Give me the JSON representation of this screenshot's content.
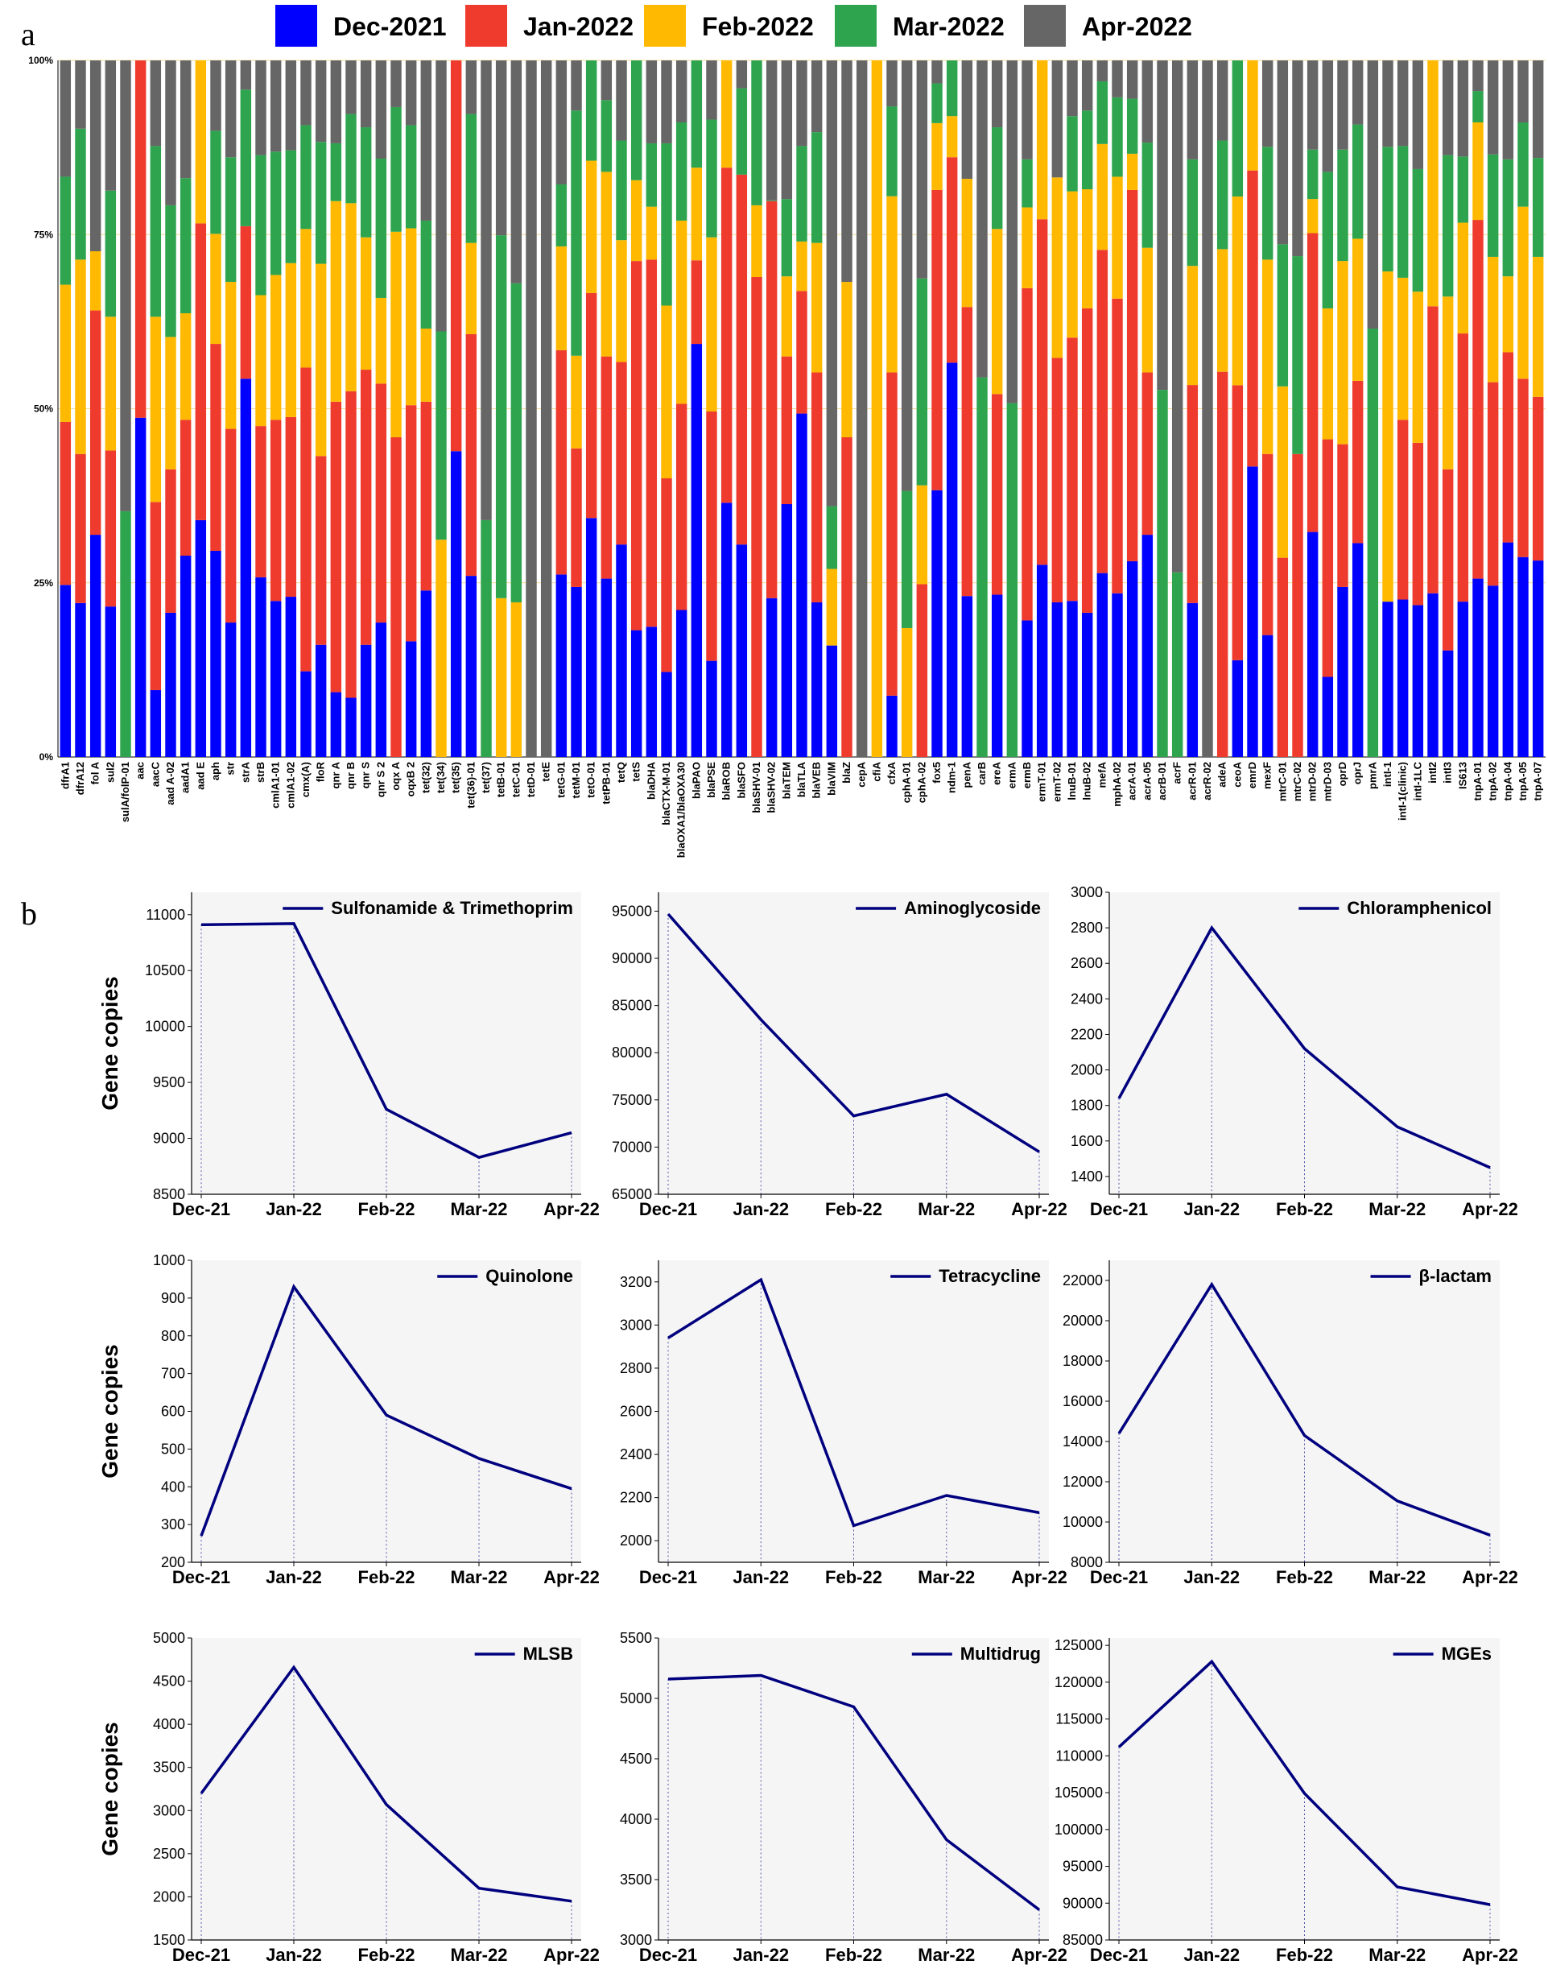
{
  "panel_labels": {
    "a": "a",
    "b": "b"
  },
  "colors": {
    "Dec-2021": "#0000ff",
    "Jan-2022": "#ee3b2e",
    "Feb-2022": "#ffb900",
    "Mar-2022": "#2ea44f",
    "Apr-2022": "#666666",
    "line": "#00007f",
    "plot_bg": "#f5f5f5"
  },
  "chart_data": [
    {
      "id": "panel-a",
      "type": "bar",
      "stacked": "percent",
      "title": "",
      "xlabel": "",
      "ylabel": "",
      "yticks": [
        "0%",
        "25%",
        "50%",
        "75%",
        "100%"
      ],
      "ylim": [
        0,
        100
      ],
      "series_names": [
        "Dec-2021",
        "Jan-2022",
        "Feb-2022",
        "Mar-2022",
        "Apr-2022"
      ],
      "categories": [
        "dfrA1",
        "dfrA12",
        "fol A",
        "sul2",
        "sulA/folP-01",
        "aac",
        "aacC",
        "aad A-02",
        "aadA1",
        "aad E",
        "aph",
        "str",
        "strA",
        "strB",
        "cmlA1-01",
        "cmlA1-02",
        "cmx(A)",
        "floR",
        "qnr A",
        "qnr B",
        "qnr S",
        "qnr S 2",
        "oqx A",
        "oqxB 2",
        "tet(32)",
        "tet(34)",
        "tet(35)",
        "tet(36)-01",
        "tet(37)",
        "tetB-01",
        "tetC-01",
        "tetD-01",
        "tetE",
        "tetG-01",
        "tetM-01",
        "tetO-01",
        "tetPB-01",
        "tetQ",
        "tetS",
        "blaDHA",
        "blaCTX-M-01",
        "blaOXA1/blaOXA30",
        "blaPAO",
        "blaPSE",
        "blaROB",
        "blaSFO",
        "blaSHV-01",
        "blaSHV-02",
        "blaTEM",
        "blaTLA",
        "blaVEB",
        "blaVIM",
        "blaZ",
        "cepA",
        "cfiA",
        "cfxA",
        "cphA-01",
        "cphA-02",
        "fox5",
        "ndm-1",
        "penA",
        "carB",
        "ereA",
        "ermA",
        "ermB",
        "ermT-01",
        "ermT-02",
        "lnuB-01",
        "lnuB-02",
        "mefA",
        "mphA-02",
        "acrA-01",
        "acrA-05",
        "acrB-01",
        "acrF",
        "acrR-01",
        "acrR-02",
        "adeA",
        "ceoA",
        "emrD",
        "mexF",
        "mtrC-01",
        "mtrC-02",
        "mtrD-02",
        "mtrD-03",
        "oprD",
        "oprJ",
        "pmrA",
        "intI-1",
        "intI-1(clinic)",
        "intI-1LC",
        "intI2",
        "intI3",
        "IS613",
        "tnpA-01",
        "tnpA-02",
        "tnpA-04",
        "tnpA-05",
        "tnpA-07"
      ],
      "values": [
        [
          24.7,
          23.4,
          19.7,
          15.5,
          16.7
        ],
        [
          22.1,
          21.4,
          27.9,
          18.8,
          9.8
        ],
        [
          31.9,
          32.2,
          8.5,
          0,
          27.4
        ],
        [
          21.6,
          22.4,
          19.2,
          18.1,
          18.7
        ],
        [
          0,
          0,
          0,
          35.3,
          64.7
        ],
        [
          48.7,
          51.3,
          0,
          0,
          0
        ],
        [
          9.6,
          27,
          26.6,
          24.5,
          12.3
        ],
        [
          20.7,
          20.6,
          19,
          18.9,
          20.8
        ],
        [
          28.9,
          19.5,
          15.3,
          19.4,
          16.9
        ],
        [
          34,
          42.6,
          23.4,
          0,
          0
        ],
        [
          29.6,
          29.7,
          15.8,
          14.8,
          10.1
        ],
        [
          19.3,
          27.8,
          21.1,
          17.9,
          13.9
        ],
        [
          54.3,
          21.9,
          0,
          19.6,
          4.2
        ],
        [
          25.8,
          21.7,
          18.8,
          20.1,
          13.6
        ],
        [
          22.4,
          26,
          20.8,
          17.7,
          13.1
        ],
        [
          23,
          25.8,
          22.1,
          16.2,
          12.9
        ],
        [
          12.3,
          43.6,
          19.9,
          14.9,
          9.3
        ],
        [
          16.1,
          27.1,
          27.6,
          17.5,
          11.7
        ],
        [
          9.3,
          41.7,
          28.8,
          8.3,
          11.9
        ],
        [
          8.5,
          44,
          27,
          12.8,
          7.7
        ],
        [
          16.1,
          39.5,
          19,
          15.8,
          9.6
        ],
        [
          19.3,
          34.3,
          12.3,
          20,
          14.1
        ],
        [
          0,
          45.9,
          29.5,
          17.9,
          6.7
        ],
        [
          16.6,
          33.9,
          25.4,
          14.8,
          9.3
        ],
        [
          23.9,
          27.1,
          10.5,
          15.5,
          23
        ],
        [
          0,
          0,
          31.2,
          29.9,
          38.9
        ],
        [
          43.9,
          56.1,
          0,
          0,
          0
        ],
        [
          26,
          34.7,
          13.1,
          18.5,
          7.7
        ],
        [
          0,
          0,
          0,
          34,
          66
        ],
        [
          0,
          0,
          22.8,
          52.1,
          25.1
        ],
        [
          0,
          0,
          22.2,
          45.8,
          32
        ],
        [
          0,
          0,
          0,
          0,
          100
        ],
        [
          0,
          0,
          0,
          0,
          100
        ],
        [
          26.2,
          32.2,
          14.9,
          8.9,
          17.8
        ],
        [
          24.4,
          19.9,
          13.3,
          35.2,
          7.2
        ],
        [
          34.3,
          32.3,
          19,
          14.4,
          0
        ],
        [
          25.6,
          31.9,
          26.5,
          10.3,
          5.7
        ],
        [
          30.5,
          26.2,
          17.5,
          14.3,
          11.5
        ],
        [
          18.2,
          53,
          11.6,
          17.2,
          0
        ],
        [
          18.7,
          52.7,
          7.6,
          9.1,
          11.9
        ],
        [
          12.2,
          27.8,
          24.8,
          23.3,
          11.9
        ],
        [
          21.1,
          29.6,
          26.3,
          14.1,
          8.9
        ],
        [
          59.3,
          12,
          13.3,
          15.4,
          0
        ],
        [
          13.8,
          35.8,
          25,
          16.9,
          8.5
        ],
        [
          36.5,
          48.1,
          15.4,
          0,
          0
        ],
        [
          30.5,
          53.1,
          0,
          12.4,
          4
        ],
        [
          0,
          68.9,
          10.3,
          20.8,
          0
        ],
        [
          22.8,
          57,
          0,
          0.1,
          20.1
        ],
        [
          36.3,
          21.2,
          11.5,
          11.1,
          19.9
        ],
        [
          49.3,
          17.6,
          7.1,
          13.7,
          12.3
        ],
        [
          22.2,
          33,
          18.6,
          15.9,
          10.3
        ],
        [
          16,
          0,
          11,
          9,
          64
        ],
        [
          0,
          45.9,
          22.3,
          0,
          31.8
        ],
        [
          0,
          0,
          0,
          0,
          100
        ],
        [
          0,
          0,
          100,
          0,
          0
        ],
        [
          8.8,
          46.4,
          25.3,
          12.9,
          6.6
        ],
        [
          0,
          0,
          18.5,
          19.7,
          61.8
        ],
        [
          0,
          24.8,
          14.2,
          29.7,
          31.3
        ],
        [
          38.3,
          43.1,
          9.6,
          5.7,
          3.3
        ],
        [
          56.6,
          29.5,
          5.9,
          8,
          0
        ],
        [
          23.1,
          41.5,
          18.4,
          0,
          17
        ],
        [
          0,
          0,
          0,
          54.5,
          45.5
        ],
        [
          23.3,
          28.8,
          23.7,
          14.6,
          9.6
        ],
        [
          0,
          0,
          0,
          50.8,
          49.2
        ],
        [
          19.6,
          47.7,
          11.6,
          6.9,
          14.2
        ],
        [
          27.6,
          49.6,
          22.8,
          0,
          0
        ],
        [
          22.2,
          35.1,
          25.9,
          0,
          16.8
        ],
        [
          22.4,
          37.8,
          21,
          10.8,
          8
        ],
        [
          20.7,
          43.7,
          17.1,
          11.3,
          7.2
        ],
        [
          26.4,
          46.4,
          15.2,
          9,
          3
        ],
        [
          23.5,
          42.3,
          17.5,
          11.4,
          5.3
        ],
        [
          28.1,
          53.3,
          5.2,
          7.9,
          5.5
        ],
        [
          31.9,
          23.3,
          17.9,
          15.1,
          11.8
        ],
        [
          0,
          0,
          0,
          52.7,
          47.3
        ],
        [
          0,
          0,
          0,
          26.5,
          73.5
        ],
        [
          22.1,
          31.3,
          17.1,
          15.3,
          14.2
        ],
        [
          0,
          0,
          0,
          0,
          100
        ],
        [
          0,
          55.3,
          17.6,
          15.6,
          11.5
        ],
        [
          14,
          39.8,
          27.3,
          19.7,
          -0.8
        ],
        [
          41.7,
          42.5,
          15.8,
          0,
          0
        ],
        [
          17.5,
          26,
          27.9,
          16.2,
          12.4
        ],
        [
          0,
          28.6,
          24.6,
          20.4,
          26.4
        ],
        [
          0,
          43.5,
          0,
          28.4,
          28.1
        ],
        [
          32.3,
          42.9,
          4.9,
          7.1,
          12.8
        ],
        [
          11.5,
          34.1,
          18.8,
          19.6,
          16
        ],
        [
          24.4,
          20.5,
          26.3,
          16,
          12.8
        ],
        [
          30.7,
          23.3,
          20.4,
          16.4,
          9.2
        ],
        [
          0,
          0,
          0,
          61.5,
          38.5
        ],
        [
          22.3,
          0,
          47.4,
          17.9,
          12.4
        ],
        [
          22.6,
          25.8,
          20.4,
          18.9,
          12.3
        ],
        [
          21.8,
          23.3,
          21.7,
          17.6,
          15.6
        ],
        [
          23.5,
          41.2,
          35.3,
          0,
          0
        ],
        [
          15.3,
          26,
          24.8,
          20.3,
          13.6
        ],
        [
          22.3,
          38.5,
          15.9,
          9.5,
          13.8
        ],
        [
          25.6,
          51.5,
          14,
          4.5,
          4.4
        ],
        [
          24.6,
          29.2,
          18,
          14.7,
          13.5
        ],
        [
          30.8,
          27.3,
          10.9,
          16.8,
          14.2
        ],
        [
          28.7,
          25.6,
          24.7,
          12.1,
          8.9
        ],
        [
          28.2,
          23.5,
          20.1,
          14.2,
          14
        ]
      ],
      "legend": [
        "Dec-2021",
        "Jan-2022",
        "Feb-2022",
        "Mar-2022",
        "Apr-2022"
      ],
      "legend_position": "top"
    },
    {
      "id": "sulf",
      "type": "line",
      "title": "Sulfonamide & Trimethoprim",
      "ylabel": "Gene copies",
      "xlabel": "",
      "categories": [
        "Dec-21",
        "Jan-22",
        "Feb-22",
        "Mar-22",
        "Apr-22"
      ],
      "values": [
        10910,
        10920,
        9260,
        8830,
        9050
      ],
      "ylim": [
        8500,
        11200
      ],
      "yticks": [
        8500,
        9000,
        9500,
        10000,
        10500,
        11000
      ],
      "legend": [
        "Sulfonamide & Trimethoprim"
      ]
    },
    {
      "id": "amino",
      "type": "line",
      "title": "Aminoglycoside",
      "ylabel": "",
      "xlabel": "",
      "categories": [
        "Dec-21",
        "Jan-22",
        "Feb-22",
        "Mar-22",
        "Apr-22"
      ],
      "values": [
        94700,
        83500,
        73300,
        75600,
        69500
      ],
      "ylim": [
        65000,
        97000
      ],
      "yticks": [
        65000,
        70000,
        75000,
        80000,
        85000,
        90000,
        95000
      ],
      "legend": [
        "Aminoglycoside"
      ]
    },
    {
      "id": "chlor",
      "type": "line",
      "title": "Chloramphenicol",
      "ylabel": "",
      "xlabel": "",
      "categories": [
        "Dec-21",
        "Jan-22",
        "Feb-22",
        "Mar-22",
        "Apr-22"
      ],
      "values": [
        1840,
        2800,
        2120,
        1680,
        1450
      ],
      "ylim": [
        1300,
        3000
      ],
      "yticks": [
        1400,
        1600,
        1800,
        2000,
        2200,
        2400,
        2600,
        2800,
        3000
      ],
      "legend": [
        "Chloramphenicol"
      ]
    },
    {
      "id": "quin",
      "type": "line",
      "title": "Quinolone",
      "ylabel": "Gene copies",
      "xlabel": "",
      "categories": [
        "Dec-21",
        "Jan-22",
        "Feb-22",
        "Mar-22",
        "Apr-22"
      ],
      "values": [
        270,
        930,
        590,
        475,
        395
      ],
      "ylim": [
        200,
        1000
      ],
      "yticks": [
        200,
        300,
        400,
        500,
        600,
        700,
        800,
        900,
        1000
      ],
      "legend": [
        "Quinolone"
      ]
    },
    {
      "id": "tetra",
      "type": "line",
      "title": "Tetracycline",
      "ylabel": "",
      "xlabel": "",
      "categories": [
        "Dec-21",
        "Jan-22",
        "Feb-22",
        "Mar-22",
        "Apr-22"
      ],
      "values": [
        2940,
        3210,
        2070,
        2210,
        2130
      ],
      "ylim": [
        1900,
        3300
      ],
      "yticks": [
        2000,
        2200,
        2400,
        2600,
        2800,
        3000,
        3200
      ],
      "legend": [
        "Tetracycline"
      ]
    },
    {
      "id": "beta",
      "type": "line",
      "title": "β-lactam",
      "ylabel": "",
      "xlabel": "",
      "categories": [
        "Dec-21",
        "Jan-22",
        "Feb-22",
        "Mar-22",
        "Apr-22"
      ],
      "values": [
        14400,
        21800,
        14300,
        11050,
        9350
      ],
      "ylim": [
        8000,
        23000
      ],
      "yticks": [
        8000,
        10000,
        12000,
        14000,
        16000,
        18000,
        20000,
        22000
      ],
      "legend": [
        "β-lactam"
      ]
    },
    {
      "id": "mlsb",
      "type": "line",
      "title": "MLSB",
      "ylabel": "Gene copies",
      "xlabel": "",
      "categories": [
        "Dec-21",
        "Jan-22",
        "Feb-22",
        "Mar-22",
        "Apr-22"
      ],
      "values": [
        3200,
        4660,
        3070,
        2100,
        1950
      ],
      "ylim": [
        1500,
        5000
      ],
      "yticks": [
        1500,
        2000,
        2500,
        3000,
        3500,
        4000,
        4500,
        5000
      ],
      "legend": [
        "MLSB"
      ]
    },
    {
      "id": "multi",
      "type": "line",
      "title": "Multidrug",
      "ylabel": "",
      "xlabel": "",
      "categories": [
        "Dec-21",
        "Jan-22",
        "Feb-22",
        "Mar-22",
        "Apr-22"
      ],
      "values": [
        5160,
        5190,
        4930,
        3830,
        3250
      ],
      "ylim": [
        3000,
        5500
      ],
      "yticks": [
        3000,
        3500,
        4000,
        4500,
        5000,
        5500
      ],
      "legend": [
        "Multidrug"
      ]
    },
    {
      "id": "mges",
      "type": "line",
      "title": "MGEs",
      "ylabel": "",
      "xlabel": "",
      "categories": [
        "Dec-21",
        "Jan-22",
        "Feb-22",
        "Mar-22",
        "Apr-22"
      ],
      "values": [
        111200,
        122800,
        104900,
        92200,
        89800
      ],
      "ylim": [
        85000,
        126000
      ],
      "yticks": [
        85000,
        90000,
        95000,
        100000,
        105000,
        110000,
        115000,
        120000,
        125000
      ],
      "legend": [
        "MGEs"
      ]
    }
  ]
}
